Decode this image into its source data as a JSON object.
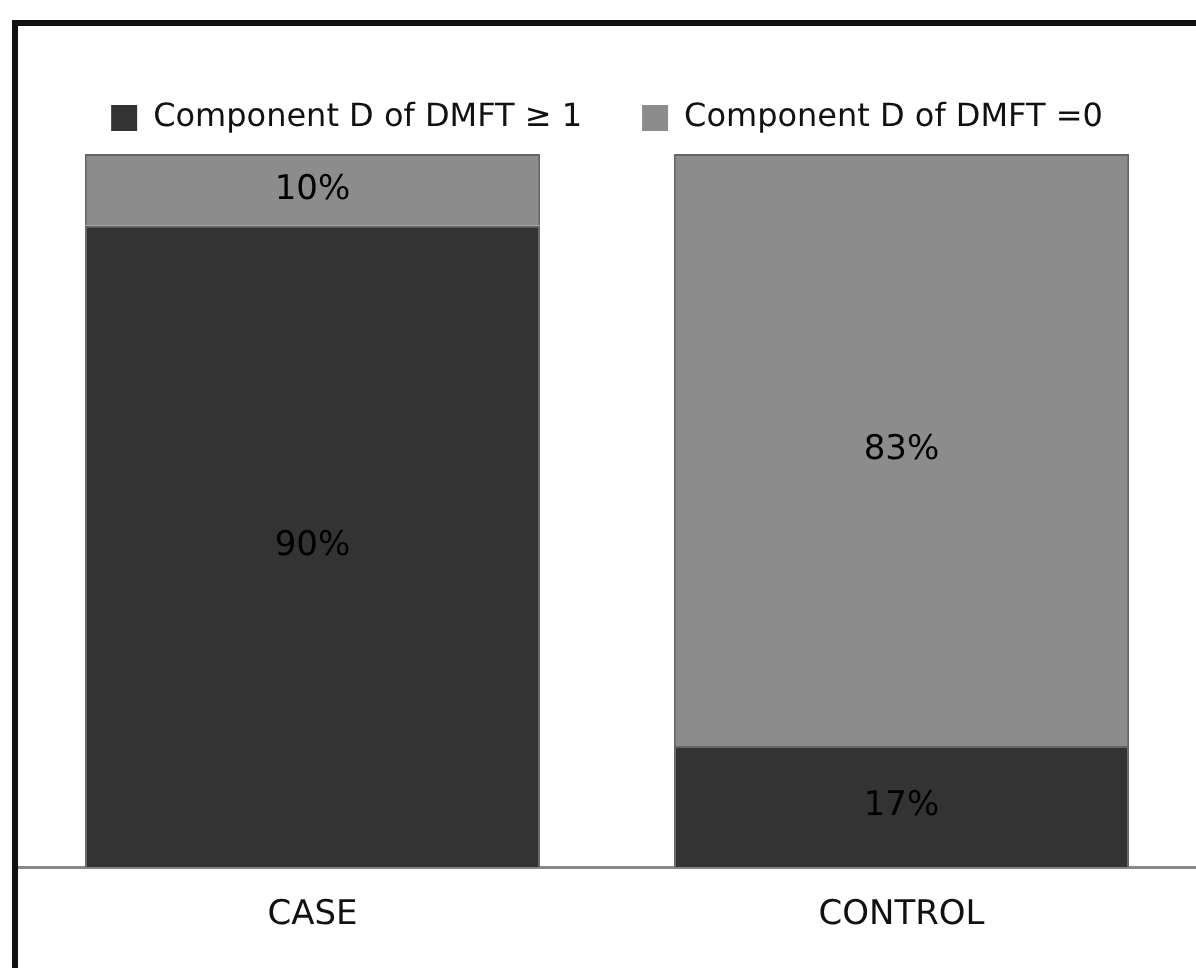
{
  "chart_data": {
    "type": "bar",
    "stacked": true,
    "categories": [
      "CASE",
      "CONTROL"
    ],
    "series": [
      {
        "name": "Component D of DMFT ≥ 1",
        "color": "#333333",
        "values": [
          90,
          17
        ],
        "value_labels": [
          "90%",
          "17%"
        ]
      },
      {
        "name": "Component D of DMFT =0",
        "color": "#8c8c8c",
        "values": [
          10,
          83
        ],
        "value_labels": [
          "10%",
          "83%"
        ]
      }
    ],
    "ylim": [
      0,
      100
    ],
    "tick_labels": "x",
    "grid": false,
    "legend": "top"
  }
}
